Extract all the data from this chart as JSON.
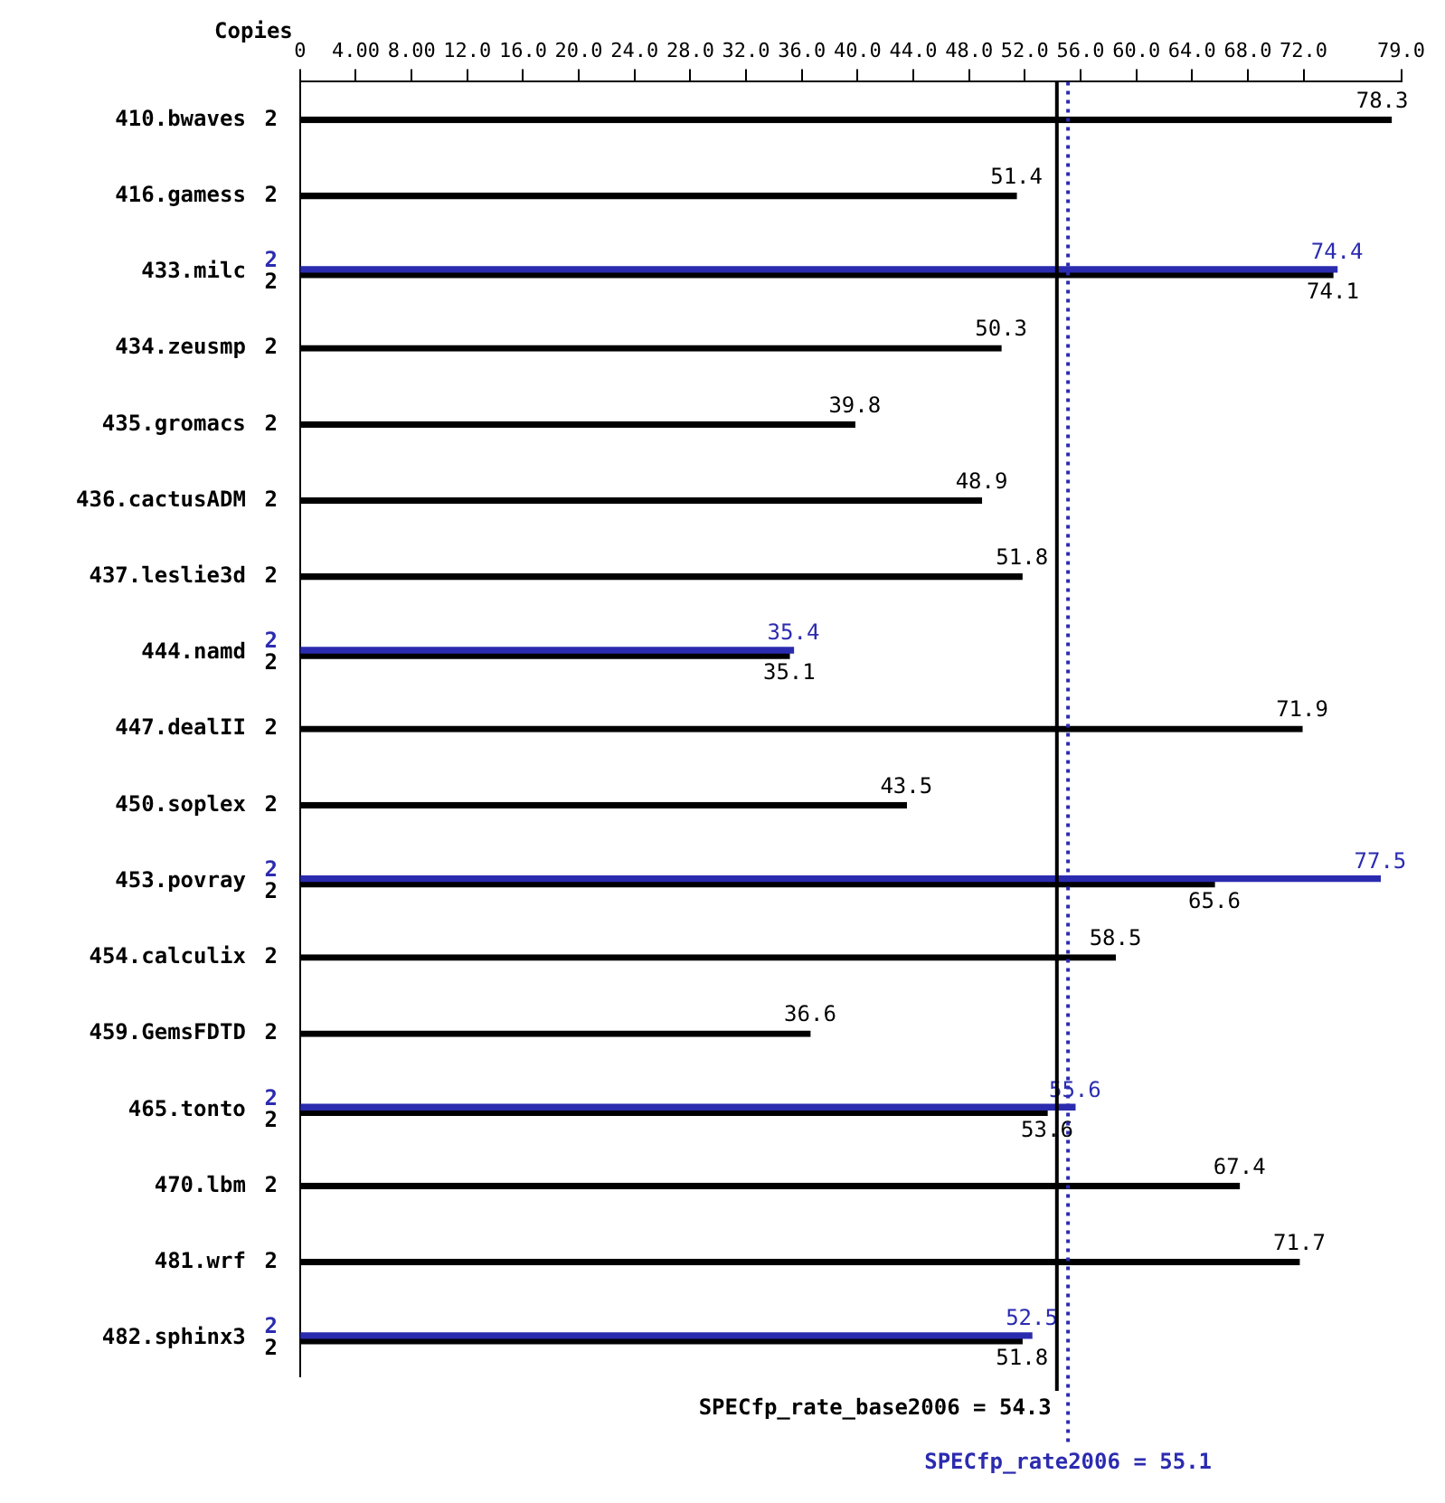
{
  "chart_data": {
    "type": "bar",
    "orientation": "horizontal",
    "categories": [
      "410.bwaves",
      "416.gamess",
      "433.milc",
      "434.zeusmp",
      "435.gromacs",
      "436.cactusADM",
      "437.leslie3d",
      "444.namd",
      "447.dealII",
      "450.soplex",
      "453.povray",
      "454.calculix",
      "459.GemsFDTD",
      "465.tonto",
      "470.lbm",
      "481.wrf",
      "482.sphinx3"
    ],
    "series": [
      {
        "color": "#2b2bb0",
        "values": [
          null,
          null,
          74.4,
          null,
          null,
          null,
          null,
          35.4,
          null,
          null,
          77.5,
          null,
          null,
          55.6,
          null,
          null,
          52.5
        ]
      },
      {
        "color": "#000000",
        "values": [
          78.3,
          51.4,
          74.1,
          50.3,
          39.8,
          48.9,
          51.8,
          35.1,
          71.9,
          43.5,
          65.6,
          58.5,
          36.6,
          53.6,
          67.4,
          71.7,
          51.8
        ]
      }
    ],
    "xlim": [
      0,
      79
    ],
    "xticks": [
      0,
      {
        "value": 4,
        "label": "4.00"
      },
      {
        "value": 8,
        "label": "8.00"
      },
      {
        "value": 12,
        "label": "12.0"
      },
      {
        "value": 16,
        "label": "16.0"
      },
      {
        "value": 20,
        "label": "20.0"
      },
      {
        "value": 24,
        "label": "24.0"
      },
      {
        "value": 28,
        "label": "28.0"
      },
      {
        "value": 32,
        "label": "32.0"
      },
      {
        "value": 36,
        "label": "36.0"
      },
      {
        "value": 40,
        "label": "40.0"
      },
      {
        "value": 44,
        "label": "44.0"
      },
      {
        "value": 48,
        "label": "48.0"
      },
      {
        "value": 52,
        "label": "52.0"
      },
      {
        "value": 56,
        "label": "56.0"
      },
      {
        "value": 60,
        "label": "60.0"
      },
      {
        "value": 64,
        "label": "64.0"
      },
      {
        "value": 68,
        "label": "68.0"
      },
      {
        "value": 72,
        "label": "72.0"
      },
      {
        "value": 79,
        "label": "79.0"
      }
    ],
    "data_labels": true,
    "grid": false,
    "legend": false,
    "ref_lines": [
      {
        "axis": "x",
        "value": 54.3,
        "label": "SPECfp_rate_base2006 = 54.3",
        "color": "#000000",
        "line_style": "solid"
      },
      {
        "axis": "x",
        "value": 55.1,
        "label": "SPECfp_rate2006 = 55.1",
        "color": "#2b2bb0",
        "line_style": "dotted"
      }
    ],
    "annotations": [
      "Copies",
      "2",
      "2",
      "2",
      "2",
      "2",
      "2",
      "2",
      "2",
      "2",
      "2",
      "2",
      "2",
      "2",
      "2",
      "2",
      "2",
      "2",
      "2",
      "2",
      "2",
      "2",
      "2"
    ]
  }
}
